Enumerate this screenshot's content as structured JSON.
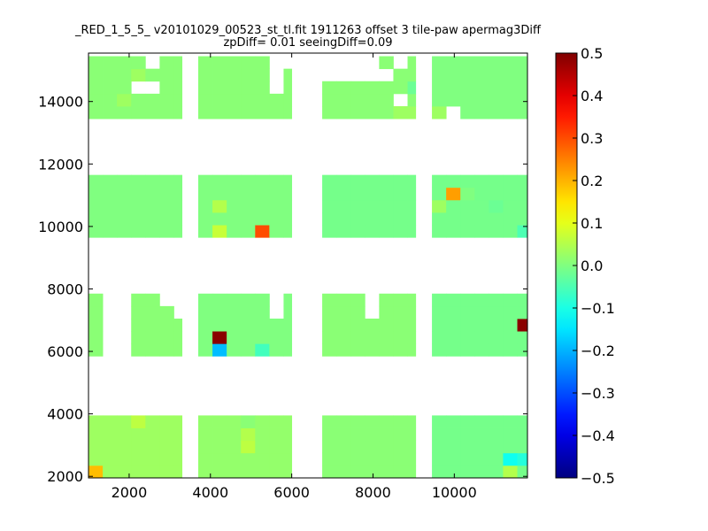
{
  "chart_data": {
    "type": "heatmap",
    "title": "_RED_1_5_5_ v20101029_00523_st_tl.fit 1911263 offset 3 tile-paw apermag3Diff",
    "subtitle": "zpDiff= 0.01 seeingDiff=0.09",
    "xlim": [
      1000,
      11800
    ],
    "ylim": [
      1950,
      15550
    ],
    "x_ticks": [
      2000,
      4000,
      6000,
      8000,
      10000
    ],
    "x_tick_labels": [
      "2000",
      "4000",
      "6000",
      "8000",
      "10000"
    ],
    "y_ticks": [
      2000,
      4000,
      6000,
      8000,
      10000,
      12000,
      14000
    ],
    "y_tick_labels": [
      "2000",
      "4000",
      "6000",
      "8000",
      "10000",
      "12000",
      "14000"
    ],
    "colorbar": {
      "colormap": "jet",
      "range": [
        -0.5,
        0.5
      ],
      "ticks": [
        0.5,
        0.4,
        0.3,
        0.2,
        0.1,
        0.0,
        -0.1,
        -0.2,
        -0.3,
        -0.4,
        -0.5
      ],
      "tick_labels": [
        "0.5",
        "0.4",
        "0.3",
        "0.2",
        "0.1",
        "0.0",
        "−0.1",
        "−0.2",
        "−0.3",
        "−0.4",
        "−0.5"
      ]
    },
    "grid": false,
    "cell_size": [
      350,
      400
    ],
    "base_value": 0.0,
    "regions": [
      {
        "x_range": [
          1000,
          3300
        ],
        "y_range": [
          13450,
          15550
        ],
        "value": 0.01
      },
      {
        "x_range": [
          3700,
          6000
        ],
        "y_range": [
          13450,
          15550
        ],
        "value": 0.01
      },
      {
        "x_range": [
          6750,
          9050
        ],
        "y_range": [
          13450,
          15550
        ],
        "value": 0.01
      },
      {
        "x_range": [
          9450,
          11800
        ],
        "y_range": [
          13450,
          15550
        ],
        "value": 0.0
      },
      {
        "x_range": [
          1000,
          3300
        ],
        "y_range": [
          9650,
          11750
        ],
        "value": 0.0
      },
      {
        "x_range": [
          3700,
          6000
        ],
        "y_range": [
          9650,
          11750
        ],
        "value": 0.0
      },
      {
        "x_range": [
          6750,
          9050
        ],
        "y_range": [
          9650,
          11750
        ],
        "value": -0.01
      },
      {
        "x_range": [
          9450,
          11800
        ],
        "y_range": [
          9650,
          11750
        ],
        "value": -0.01
      },
      {
        "x_range": [
          1000,
          3300
        ],
        "y_range": [
          5850,
          7850
        ],
        "value": 0.01
      },
      {
        "x_range": [
          3700,
          6000
        ],
        "y_range": [
          5850,
          7850
        ],
        "value": 0.0
      },
      {
        "x_range": [
          6750,
          9050
        ],
        "y_range": [
          5850,
          7850
        ],
        "value": 0.01
      },
      {
        "x_range": [
          9450,
          11800
        ],
        "y_range": [
          5850,
          7850
        ],
        "value": -0.01
      },
      {
        "x_range": [
          1000,
          3300
        ],
        "y_range": [
          1950,
          4050
        ],
        "value": 0.03
      },
      {
        "x_range": [
          3700,
          6000
        ],
        "y_range": [
          1950,
          4050
        ],
        "value": 0.02
      },
      {
        "x_range": [
          6750,
          9050
        ],
        "y_range": [
          1950,
          4050
        ],
        "value": 0.01
      },
      {
        "x_range": [
          9450,
          11800
        ],
        "y_range": [
          1950,
          4050
        ],
        "value": -0.01
      }
    ],
    "blanks": [
      [
        2,
        10
      ],
      [
        2,
        11
      ],
      [
        2,
        12
      ],
      [
        2,
        13
      ],
      [
        2,
        14
      ],
      [
        1,
        10
      ],
      [
        1,
        11
      ],
      [
        1,
        12
      ],
      [
        1,
        13
      ],
      [
        1,
        14
      ],
      [
        2,
        8
      ],
      [
        3,
        8
      ],
      [
        4,
        8
      ],
      [
        2,
        7
      ],
      [
        3,
        7
      ],
      [
        4,
        7
      ],
      [
        5,
        14
      ],
      [
        6,
        14
      ],
      [
        13,
        14
      ],
      [
        13,
        13
      ],
      [
        6,
        13
      ],
      [
        30,
        15
      ],
      [
        31,
        15
      ],
      [
        32,
        15
      ],
      [
        33,
        15
      ],
      [
        34,
        15
      ],
      [
        31,
        14
      ],
      [
        32,
        14
      ],
      [
        33,
        14
      ],
      [
        34,
        14
      ],
      [
        19,
        14
      ],
      [
        19,
        13
      ],
      [
        23,
        14
      ],
      [
        23,
        15
      ],
      [
        24,
        15
      ],
      [
        25,
        15
      ],
      [
        26,
        15
      ],
      [
        27,
        15
      ],
      [
        1,
        17
      ],
      [
        1,
        16
      ],
      [
        3,
        16
      ],
      [
        4,
        16
      ],
      [
        5,
        16
      ],
      [
        0,
        16
      ],
      [
        0,
        17
      ],
      [
        18,
        17
      ],
      [
        18,
        16
      ],
      [
        19,
        17
      ],
      [
        20,
        17
      ],
      [
        21,
        17
      ],
      [
        28,
        17
      ],
      [
        29,
        17
      ],
      [
        29,
        16
      ],
      [
        28,
        16
      ],
      [
        27,
        16
      ],
      [
        22,
        16
      ],
      [
        23,
        17
      ],
      [
        26,
        17
      ],
      [
        27,
        17
      ],
      [
        25,
        16
      ],
      [
        24,
        16
      ],
      [
        25,
        17
      ],
      [
        24,
        17
      ],
      [
        3,
        31
      ],
      [
        4,
        31
      ],
      [
        4,
        33
      ],
      [
        20,
        32
      ],
      [
        21,
        33
      ],
      [
        25,
        29
      ],
      [
        21,
        30
      ],
      [
        20,
        25
      ],
      [
        31,
        25
      ],
      [
        32,
        25
      ],
      [
        33,
        25
      ],
      [
        34,
        25
      ],
      [
        31,
        29
      ],
      [
        32,
        29
      ],
      [
        13,
        33
      ],
      [
        14,
        33
      ],
      [
        15,
        33
      ],
      [
        16,
        33
      ],
      [
        17,
        33
      ],
      [
        18,
        33
      ],
      [
        19,
        33
      ],
      [
        13,
        32
      ],
      [
        13,
        31
      ],
      [
        16,
        32
      ],
      [
        17,
        32
      ],
      [
        19,
        32
      ],
      [
        18,
        32
      ],
      [
        14,
        25
      ],
      [
        13,
        25
      ],
      [
        22,
        25
      ]
    ],
    "cells": [
      {
        "ix": 0,
        "iy": 0,
        "value": 0.19
      },
      {
        "ix": 3,
        "iy": 4,
        "value": 0.06
      },
      {
        "ix": 11,
        "iy": 4,
        "value": 0.01
      },
      {
        "ix": 11,
        "iy": 2,
        "value": 0.06
      },
      {
        "ix": 11,
        "iy": 3,
        "value": 0.05
      },
      {
        "ix": 29,
        "iy": 1,
        "value": -0.11
      },
      {
        "ix": 30,
        "iy": 1,
        "value": -0.09
      },
      {
        "ix": 31,
        "iy": 0,
        "value": -0.07
      },
      {
        "ix": 32,
        "iy": 0,
        "value": -0.11
      },
      {
        "ix": 33,
        "iy": 1,
        "value": 0.05
      },
      {
        "ix": 29,
        "iy": 0,
        "value": 0.05
      },
      {
        "ix": 31,
        "iy": 1,
        "value": 0.02
      },
      {
        "ix": 27,
        "iy": 5,
        "value": -0.04
      },
      {
        "ix": 9,
        "iy": 11,
        "value": 0.49
      },
      {
        "ix": 9,
        "iy": 10,
        "value": -0.19
      },
      {
        "ix": 12,
        "iy": 10,
        "value": -0.06
      },
      {
        "ix": 23,
        "iy": 10,
        "value": 0.07
      },
      {
        "ix": 25,
        "iy": 9,
        "value": -0.03
      },
      {
        "ix": 30,
        "iy": 12,
        "value": 0.49
      },
      {
        "ix": 12,
        "iy": 19,
        "value": 0.3
      },
      {
        "ix": 9,
        "iy": 19,
        "value": 0.07
      },
      {
        "ix": 9,
        "iy": 21,
        "value": 0.05
      },
      {
        "ix": 25,
        "iy": 22,
        "value": 0.22
      },
      {
        "ix": 30,
        "iy": 19,
        "value": -0.05
      },
      {
        "ix": 24,
        "iy": 21,
        "value": 0.03
      },
      {
        "ix": 28,
        "iy": 21,
        "value": -0.02
      },
      {
        "ix": 21,
        "iy": 29,
        "value": 0.03
      },
      {
        "ix": 22,
        "iy": 29,
        "value": 0.03
      },
      {
        "ix": 23,
        "iy": 28,
        "value": 0.04
      },
      {
        "ix": 24,
        "iy": 28,
        "value": 0.1
      },
      {
        "ix": 24,
        "iy": 29,
        "value": 0.03
      },
      {
        "ix": 10,
        "iy": 28,
        "value": 0.05
      },
      {
        "ix": 33,
        "iy": 34,
        "value": -0.06
      },
      {
        "ix": 22,
        "iy": 31,
        "value": -0.02
      },
      {
        "ix": 2,
        "iy": 30,
        "value": 0.03
      },
      {
        "ix": 3,
        "iy": 32,
        "value": 0.03
      },
      {
        "ix": 26,
        "iy": 22,
        "value": 0.0
      }
    ]
  }
}
